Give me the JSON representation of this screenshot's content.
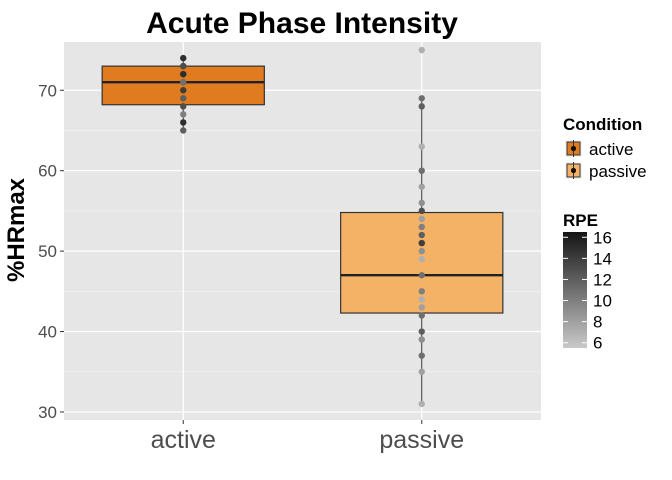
{
  "chart_data": {
    "type": "box",
    "title": "Acute Phase Intensity",
    "xlabel": "",
    "ylabel": "%HRmax",
    "categories": [
      "active",
      "passive"
    ],
    "ylim": [
      29,
      76
    ],
    "yticks": [
      30,
      40,
      50,
      60,
      70
    ],
    "grid": true,
    "boxes": [
      {
        "category": "active",
        "condition": "active",
        "q1": 68.2,
        "median": 71,
        "q3": 73,
        "whisker_low": 65,
        "whisker_high": 74
      },
      {
        "category": "passive",
        "condition": "passive",
        "q1": 42.3,
        "median": 47,
        "q3": 54.8,
        "whisker_low": 31,
        "whisker_high": 69
      }
    ],
    "points": [
      {
        "category": "active",
        "values": [
          74,
          73,
          73,
          72,
          72,
          71,
          71,
          70,
          69,
          68,
          67,
          66,
          65
        ],
        "rpe": [
          15,
          14,
          13,
          12,
          15,
          13,
          11,
          14,
          12,
          13,
          10,
          15,
          12
        ]
      },
      {
        "category": "passive",
        "values": [
          75,
          69,
          68,
          63,
          60,
          58,
          56,
          55,
          54,
          53,
          52,
          51,
          50,
          49,
          47,
          45,
          44,
          43,
          42,
          40,
          39,
          37,
          35,
          31
        ],
        "rpe": [
          7,
          11,
          12,
          7,
          11,
          8,
          9,
          13,
          8,
          10,
          12,
          14,
          9,
          7,
          11,
          10,
          7,
          8,
          11,
          12,
          9,
          11,
          8,
          7
        ]
      }
    ],
    "legend": {
      "position": "right",
      "condition": {
        "title": "Condition",
        "items": [
          {
            "label": "active",
            "color": "#e07b1f"
          },
          {
            "label": "passive",
            "color": "#f4b266"
          }
        ]
      },
      "rpe": {
        "title": "RPE",
        "range": [
          5.5,
          16.5
        ],
        "ticks": [
          6,
          8,
          10,
          12,
          14,
          16
        ],
        "color_low": "#c9c9c9",
        "color_high": "#141414"
      }
    }
  }
}
